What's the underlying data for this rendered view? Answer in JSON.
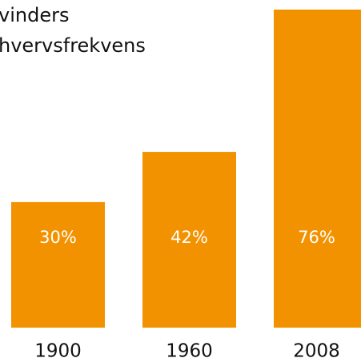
{
  "chart_data": {
    "type": "bar",
    "title": [
      "vinders",
      "hvervsfrekvens"
    ],
    "categories": [
      "1900",
      "1960",
      "2008"
    ],
    "values": [
      30,
      42,
      76
    ],
    "value_labels": [
      "30%",
      "42%",
      "76%"
    ],
    "color": "#f39200",
    "ylim": [
      0,
      76
    ]
  }
}
